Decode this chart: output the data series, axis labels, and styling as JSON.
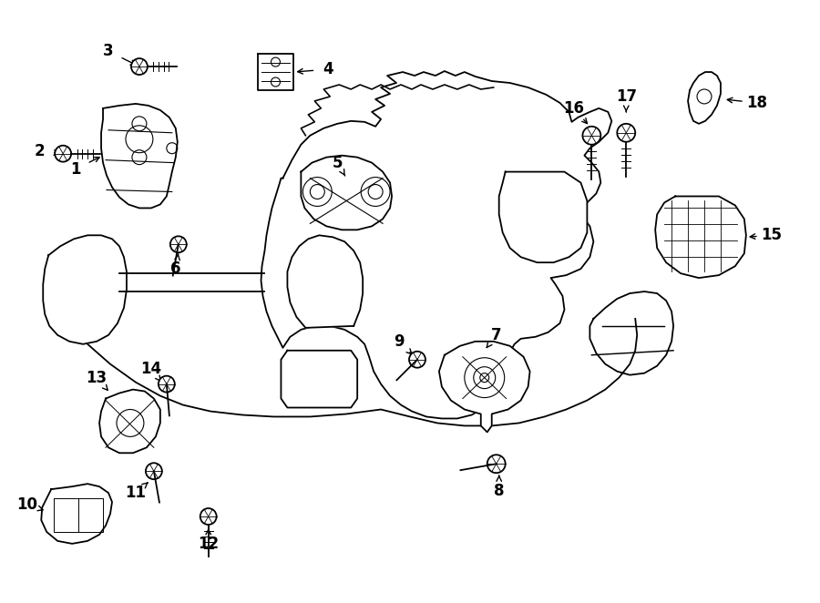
{
  "bg_color": "#ffffff",
  "line_color": "#000000",
  "figsize": [
    9.0,
    6.62
  ],
  "dpi": 100,
  "lw": 1.3
}
